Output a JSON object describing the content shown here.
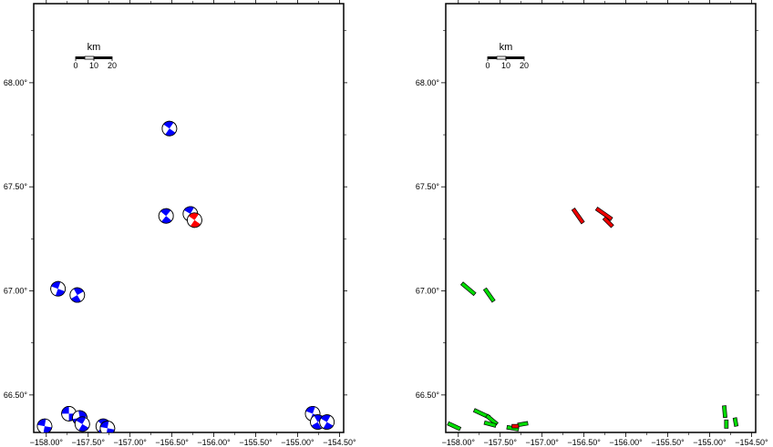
{
  "scale_bar": {
    "unit": "km",
    "labels": [
      "0",
      "10",
      "20"
    ]
  },
  "colors": {
    "beachball_blue": "#0000ff",
    "beachball_red": "#ff0000",
    "fault_green": "#00dd00",
    "fault_red": "#ee0000"
  },
  "axes": {
    "x_ticks": [
      {
        "value": -158.0,
        "label": "−158.00°"
      },
      {
        "value": -157.5,
        "label": "−157.50°"
      },
      {
        "value": -157.0,
        "label": "−157.00°"
      },
      {
        "value": -156.5,
        "label": "−156.50°"
      },
      {
        "value": -156.0,
        "label": "−156.00°"
      },
      {
        "value": -155.5,
        "label": "−155.50°"
      },
      {
        "value": -155.0,
        "label": "−155.00°"
      },
      {
        "value": -154.5,
        "label": "−154.50°"
      }
    ],
    "y_ticks": [
      {
        "value": 68.0,
        "label": "68.00°"
      },
      {
        "value": 67.5,
        "label": "67.50°"
      },
      {
        "value": 67.0,
        "label": "67.00°"
      },
      {
        "value": 66.5,
        "label": "66.50°"
      }
    ],
    "x_range": [
      -158.15,
      -154.45
    ],
    "y_range": [
      66.32,
      68.38
    ]
  },
  "panels": [
    {
      "name": "focal-mechanisms",
      "beachballs": [
        {
          "lon": -156.53,
          "lat": 67.78,
          "color": "blue",
          "rot": 35
        },
        {
          "lon": -156.57,
          "lat": 67.36,
          "color": "blue",
          "rot": 40
        },
        {
          "lon": -156.28,
          "lat": 67.37,
          "color": "blue",
          "rot": 30
        },
        {
          "lon": -156.23,
          "lat": 67.34,
          "color": "red",
          "rot": 35
        },
        {
          "lon": -157.86,
          "lat": 67.01,
          "color": "blue",
          "rot": 20
        },
        {
          "lon": -157.63,
          "lat": 66.98,
          "color": "blue",
          "rot": 60
        },
        {
          "lon": -158.02,
          "lat": 66.35,
          "color": "blue",
          "rot": 10
        },
        {
          "lon": -157.73,
          "lat": 66.41,
          "color": "blue",
          "rot": 0
        },
        {
          "lon": -157.6,
          "lat": 66.39,
          "color": "blue",
          "rot": 80
        },
        {
          "lon": -157.57,
          "lat": 66.36,
          "color": "blue",
          "rot": 30
        },
        {
          "lon": -157.32,
          "lat": 66.35,
          "color": "blue",
          "rot": 45
        },
        {
          "lon": -157.27,
          "lat": 66.34,
          "color": "blue",
          "rot": 10
        },
        {
          "lon": -154.82,
          "lat": 66.41,
          "color": "blue",
          "rot": 20
        },
        {
          "lon": -154.76,
          "lat": 66.37,
          "color": "blue",
          "rot": 60
        },
        {
          "lon": -154.65,
          "lat": 66.37,
          "color": "blue",
          "rot": 30
        }
      ]
    },
    {
      "name": "fault-planes",
      "faults": [
        {
          "lon": -156.57,
          "lat": 67.36,
          "angle": 55,
          "len": 0.2,
          "color": "red"
        },
        {
          "lon": -156.26,
          "lat": 67.37,
          "angle": 35,
          "len": 0.22,
          "color": "red"
        },
        {
          "lon": -156.21,
          "lat": 67.33,
          "angle": 45,
          "len": 0.14,
          "color": "red"
        },
        {
          "lon": -157.88,
          "lat": 67.01,
          "angle": 40,
          "len": 0.2,
          "color": "green"
        },
        {
          "lon": -157.63,
          "lat": 66.98,
          "angle": 55,
          "len": 0.18,
          "color": "green"
        },
        {
          "lon": -158.05,
          "lat": 66.35,
          "angle": 25,
          "len": 0.16,
          "color": "green"
        },
        {
          "lon": -157.72,
          "lat": 66.41,
          "angle": 25,
          "len": 0.2,
          "color": "green"
        },
        {
          "lon": -157.6,
          "lat": 66.38,
          "angle": 40,
          "len": 0.16,
          "color": "green"
        },
        {
          "lon": -157.62,
          "lat": 66.36,
          "angle": 15,
          "len": 0.14,
          "color": "green"
        },
        {
          "lon": -157.35,
          "lat": 66.34,
          "angle": 10,
          "len": 0.14,
          "color": "green"
        },
        {
          "lon": -157.23,
          "lat": 66.36,
          "angle": -10,
          "len": 0.12,
          "color": "green"
        },
        {
          "lon": -157.32,
          "lat": 66.35,
          "angle": 0,
          "len": 0.08,
          "color": "red"
        },
        {
          "lon": -154.82,
          "lat": 66.42,
          "angle": 85,
          "len": 0.14,
          "color": "green"
        },
        {
          "lon": -154.8,
          "lat": 66.36,
          "angle": 90,
          "len": 0.1,
          "color": "green"
        },
        {
          "lon": -154.69,
          "lat": 66.37,
          "angle": 80,
          "len": 0.1,
          "color": "green"
        }
      ]
    }
  ]
}
